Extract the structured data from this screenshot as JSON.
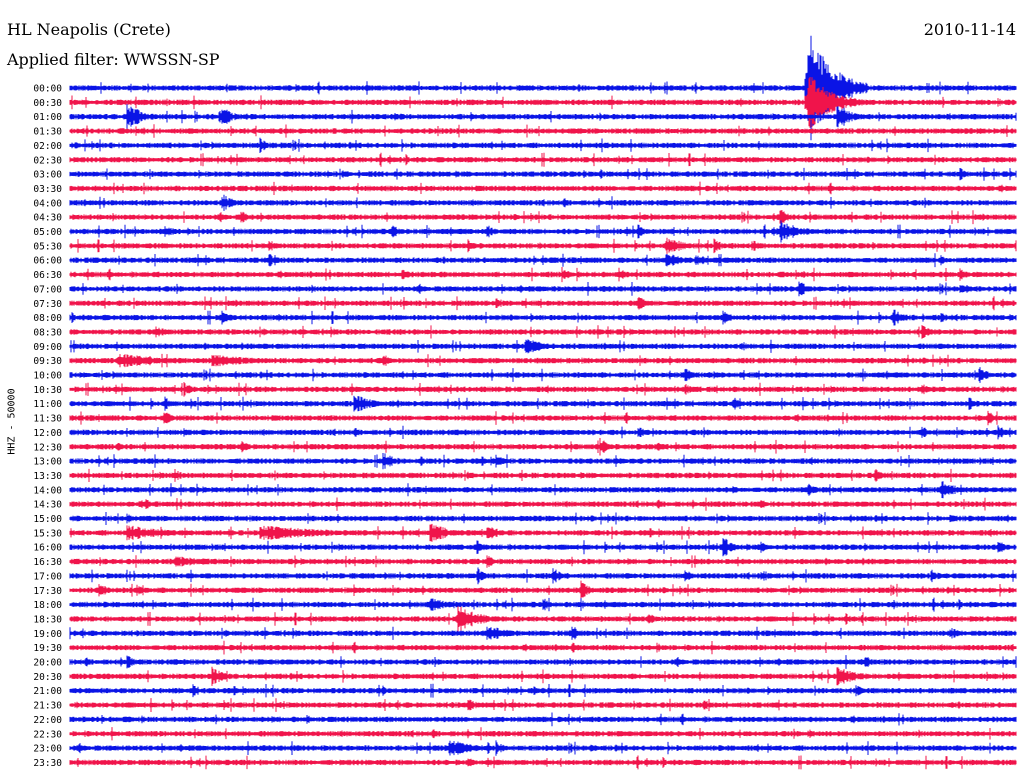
{
  "header": {
    "station": "HL Neapolis (Crete)",
    "filter": "Applied filter: WWSSN-SP",
    "date": "2010-11-14"
  },
  "chart_data": {
    "type": "line",
    "title": "HL Neapolis (Crete)",
    "subtitle": "Applied filter: WWSSN-SP",
    "date": "2010-11-14",
    "ylabel": "HHZ - 50000",
    "colors": [
      "#0a14e6",
      "#f0144b"
    ],
    "row_labels": [
      "00:00",
      "00:30",
      "01:00",
      "01:30",
      "02:00",
      "02:30",
      "03:00",
      "03:30",
      "04:00",
      "04:30",
      "05:00",
      "05:30",
      "06:00",
      "06:30",
      "07:00",
      "07:30",
      "08:00",
      "08:30",
      "09:00",
      "09:30",
      "10:00",
      "10:30",
      "11:00",
      "11:30",
      "12:00",
      "12:30",
      "13:00",
      "13:30",
      "14:00",
      "14:30",
      "15:00",
      "15:30",
      "16:00",
      "16:30",
      "17:00",
      "17:30",
      "18:00",
      "18:30",
      "19:00",
      "19:30",
      "20:00",
      "20:30",
      "21:00",
      "21:30",
      "22:00",
      "22:30",
      "23:00",
      "23:30"
    ],
    "events": [
      [
        0,
        0.78,
        3,
        60
      ],
      [
        1,
        0.78,
        3,
        30
      ],
      [
        2,
        0.16,
        1,
        16
      ],
      [
        2,
        0.06,
        2.2,
        14
      ],
      [
        2,
        0.81,
        1.6,
        16
      ],
      [
        4,
        0.2,
        0.6,
        10
      ],
      [
        6,
        0.94,
        0.8,
        8
      ],
      [
        6,
        0.56,
        0.5,
        6
      ],
      [
        8,
        0.16,
        1.4,
        10
      ],
      [
        9,
        0.18,
        0.8,
        8
      ],
      [
        9,
        0.75,
        1,
        10
      ],
      [
        10,
        0.75,
        2.6,
        12
      ],
      [
        10,
        0.1,
        1,
        8
      ],
      [
        10,
        0.34,
        1,
        8
      ],
      [
        10,
        0.44,
        0.9,
        8
      ],
      [
        10,
        0.6,
        0.8,
        8
      ],
      [
        11,
        0.21,
        0.8,
        8
      ],
      [
        11,
        0.42,
        0.7,
        8
      ],
      [
        11,
        0.63,
        2,
        10
      ],
      [
        11,
        0.68,
        0.8,
        8
      ],
      [
        11,
        0.72,
        0.7,
        8
      ],
      [
        12,
        0.63,
        2.5,
        8
      ],
      [
        12,
        0.66,
        2.5,
        6
      ],
      [
        12,
        0.21,
        0.8,
        8
      ],
      [
        12,
        0.5,
        0.5,
        6
      ],
      [
        12,
        0.92,
        0.5,
        6
      ],
      [
        13,
        0.35,
        0.8,
        8
      ],
      [
        13,
        0.52,
        0.8,
        8
      ],
      [
        13,
        0.58,
        0.6,
        8
      ],
      [
        13,
        0.94,
        0.7,
        8
      ],
      [
        14,
        0.77,
        0.9,
        10
      ],
      [
        14,
        0.94,
        0.8,
        8
      ],
      [
        15,
        0.6,
        1,
        8
      ],
      [
        15,
        0.45,
        0.5,
        6
      ],
      [
        16,
        0.16,
        1,
        10
      ],
      [
        16,
        0.22,
        0.6,
        6
      ],
      [
        16,
        0.69,
        0.9,
        8
      ],
      [
        16,
        0.87,
        1,
        10
      ],
      [
        16,
        0.92,
        0.6,
        8
      ],
      [
        17,
        0.09,
        1,
        8
      ],
      [
        17,
        0.9,
        1,
        8
      ],
      [
        18,
        0.48,
        2.6,
        9
      ],
      [
        18,
        0.71,
        0.5,
        6
      ],
      [
        19,
        0.05,
        6,
        8
      ],
      [
        19,
        0.15,
        6,
        7
      ],
      [
        19,
        0.33,
        1,
        6
      ],
      [
        20,
        0.65,
        1,
        8
      ],
      [
        20,
        0.96,
        0.9,
        10
      ],
      [
        21,
        0.12,
        1,
        8
      ],
      [
        21,
        0.65,
        0.8,
        8
      ],
      [
        21,
        0.9,
        0.6,
        8
      ],
      [
        22,
        0.3,
        2.4,
        10
      ],
      [
        22,
        0.1,
        0.8,
        8
      ],
      [
        22,
        0.7,
        0.9,
        8
      ],
      [
        22,
        0.95,
        0.8,
        8
      ],
      [
        23,
        0.1,
        0.7,
        8
      ],
      [
        23,
        0.97,
        0.8,
        8
      ],
      [
        24,
        0.12,
        0.6,
        6
      ],
      [
        24,
        0.6,
        0.8,
        8
      ],
      [
        24,
        0.9,
        0.8,
        8
      ],
      [
        24,
        0.98,
        0.8,
        10
      ],
      [
        25,
        0.05,
        0.6,
        6
      ],
      [
        25,
        0.18,
        0.7,
        8
      ],
      [
        25,
        0.56,
        0.9,
        10
      ],
      [
        25,
        0.62,
        0.6,
        6
      ],
      [
        26,
        0.33,
        1.6,
        10
      ],
      [
        26,
        0.45,
        0.7,
        8
      ],
      [
        26,
        0.37,
        0.5,
        6
      ],
      [
        27,
        0.11,
        0.7,
        8
      ],
      [
        27,
        0.85,
        0.8,
        8
      ],
      [
        28,
        0.92,
        2.4,
        10
      ],
      [
        28,
        0.78,
        0.8,
        8
      ],
      [
        28,
        0.7,
        0.5,
        6
      ],
      [
        29,
        0.08,
        0.6,
        6
      ],
      [
        29,
        0.87,
        0.6,
        6
      ],
      [
        29,
        0.73,
        0.5,
        6
      ],
      [
        30,
        0.06,
        0.6,
        6
      ],
      [
        30,
        0.93,
        0.6,
        6
      ],
      [
        31,
        0.06,
        6,
        8
      ],
      [
        31,
        0.2,
        10,
        8
      ],
      [
        31,
        0.38,
        3,
        10
      ],
      [
        31,
        0.44,
        1.4,
        10
      ],
      [
        32,
        0.43,
        0.7,
        8
      ],
      [
        32,
        0.69,
        0.9,
        12
      ],
      [
        32,
        0.73,
        0.6,
        8
      ],
      [
        32,
        0.98,
        0.9,
        8
      ],
      [
        33,
        0.11,
        6,
        6
      ],
      [
        33,
        0.44,
        0.7,
        8
      ],
      [
        34,
        0.43,
        0.8,
        10
      ],
      [
        34,
        0.51,
        0.8,
        10
      ],
      [
        34,
        0.65,
        0.6,
        8
      ],
      [
        34,
        0.73,
        0.7,
        8
      ],
      [
        34,
        0.91,
        0.8,
        8
      ],
      [
        35,
        0.03,
        0.9,
        10
      ],
      [
        35,
        0.07,
        0.5,
        8
      ],
      [
        35,
        0.54,
        0.9,
        10
      ],
      [
        35,
        0.3,
        0.6,
        6
      ],
      [
        36,
        0.38,
        2.4,
        8
      ],
      [
        36,
        0.5,
        0.6,
        8
      ],
      [
        36,
        0.87,
        0.6,
        6
      ],
      [
        37,
        0.41,
        2.8,
        14
      ],
      [
        37,
        0.61,
        0.7,
        8
      ],
      [
        37,
        0.82,
        0.6,
        6
      ],
      [
        38,
        0.44,
        2.8,
        9
      ],
      [
        38,
        0.53,
        0.7,
        10
      ],
      [
        38,
        0.93,
        0.8,
        8
      ],
      [
        39,
        0.53,
        0.6,
        6
      ],
      [
        39,
        0.62,
        0.5,
        6
      ],
      [
        40,
        0.06,
        0.8,
        8
      ],
      [
        40,
        0.84,
        0.8,
        8
      ],
      [
        41,
        0.15,
        1.4,
        10
      ],
      [
        41,
        0.81,
        3,
        10
      ],
      [
        42,
        0.13,
        0.7,
        8
      ],
      [
        42,
        0.33,
        0.6,
        6
      ],
      [
        42,
        0.49,
        0.5,
        6
      ],
      [
        42,
        0.83,
        0.6,
        8
      ],
      [
        43,
        0.42,
        1,
        8
      ],
      [
        43,
        0.67,
        0.8,
        6
      ],
      [
        44,
        0.25,
        1,
        6
      ],
      [
        45,
        0.78,
        0.6,
        6
      ],
      [
        46,
        0.4,
        3,
        10
      ],
      [
        46,
        0.45,
        0.8,
        8
      ],
      [
        46,
        0.55,
        0.6,
        6
      ],
      [
        47,
        0.42,
        0.5,
        8
      ]
    ],
    "noise_level": 2.0
  }
}
